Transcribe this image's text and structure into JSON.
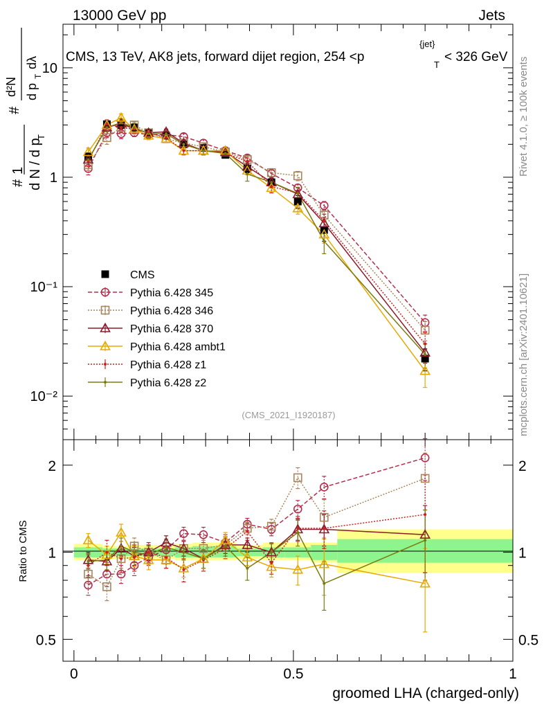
{
  "header": {
    "left_label": "13000 GeV pp",
    "right_label": "Jets",
    "plot_title_main": "CMS, 13 TeV, AK8 jets, forward dijet region, 254 <p",
    "plot_title_sub": "T",
    "plot_title_sup": "{jet}",
    "plot_title_tail": "< 326 GeV"
  },
  "side_labels": {
    "rivet": "Rivet 4.1.0, ≥ 100k events",
    "mcplots": "mcplots.cern.ch [arXiv:2401.10621]"
  },
  "watermark": "(CMS_2021_I1920187)",
  "colors": {
    "p345": "#b22d4b",
    "p346": "#a8855c",
    "p370": "#8b1a2a",
    "ambt1": "#e8a800",
    "z1": "#cc1f1f",
    "z2": "#7a7a10",
    "band_inner": "#8ef58e",
    "band_outer": "#ffff8c"
  },
  "chart_data": [
    {
      "type": "line",
      "panel": "main",
      "yscale": "log",
      "ylim": [
        0.004,
        25
      ],
      "xlim": [
        -0.025,
        1.0
      ],
      "ylabel": "# 1/(dN/dp_T) # d²N/(dp_T dλ)",
      "ytick_labels": [
        "10⁻²",
        "10⁻¹",
        "1",
        "10"
      ],
      "legend_position": "middle-left",
      "x": [
        0.0325,
        0.075,
        0.1075,
        0.1375,
        0.17,
        0.21,
        0.25,
        0.295,
        0.345,
        0.395,
        0.45,
        0.51,
        0.57,
        0.8
      ],
      "series": [
        {
          "name": "CMS",
          "values": [
            1.55,
            3.05,
            3.0,
            2.85,
            2.55,
            2.4,
            2.0,
            1.85,
            1.6,
            1.2,
            0.9,
            0.6,
            0.33,
            0.022
          ],
          "errors": [
            0.1,
            0.15,
            0.15,
            0.15,
            0.12,
            0.12,
            0.1,
            0.1,
            0.08,
            0.1,
            0.08,
            0.08,
            0.07,
            0.005
          ]
        },
        {
          "name": "Pythia 6.428 345",
          "values": [
            1.2,
            2.55,
            2.5,
            2.55,
            2.45,
            2.45,
            2.35,
            2.05,
            1.75,
            1.5,
            1.08,
            0.8,
            0.55,
            0.047
          ],
          "errors": [
            0.15,
            0.25,
            0.25,
            0.2,
            0.2,
            0.15,
            0.15,
            0.15,
            0.12,
            0.1,
            0.1,
            0.06,
            0.05,
            0.008
          ]
        },
        {
          "name": "Pythia 6.428 346",
          "values": [
            1.3,
            2.3,
            2.85,
            3.0,
            2.55,
            2.25,
            2.05,
            1.9,
            1.7,
            1.45,
            1.1,
            1.03,
            0.45,
            0.04
          ],
          "errors": [
            0.15,
            0.3,
            0.25,
            0.2,
            0.2,
            0.15,
            0.15,
            0.15,
            0.12,
            0.1,
            0.1,
            0.1,
            0.06,
            0.008
          ]
        },
        {
          "name": "Pythia 6.428 370",
          "values": [
            1.45,
            2.85,
            3.1,
            2.75,
            2.55,
            2.6,
            2.05,
            1.75,
            1.7,
            1.25,
            0.9,
            0.7,
            0.38,
            0.025
          ],
          "errors": [
            0.15,
            0.2,
            0.2,
            0.2,
            0.2,
            0.15,
            0.15,
            0.15,
            0.12,
            0.1,
            0.08,
            0.06,
            0.05,
            0.005
          ]
        },
        {
          "name": "Pythia 6.428 ambt1",
          "values": [
            1.7,
            3.0,
            3.5,
            2.75,
            2.4,
            2.25,
            1.75,
            1.75,
            1.75,
            1.15,
            0.8,
            0.52,
            0.3,
            0.017
          ],
          "errors": [
            0.15,
            0.2,
            0.3,
            0.25,
            0.2,
            0.15,
            0.15,
            0.15,
            0.12,
            0.1,
            0.08,
            0.06,
            0.05,
            0.005
          ]
        },
        {
          "name": "Pythia 6.428 z1",
          "values": [
            1.4,
            3.05,
            2.85,
            2.75,
            2.55,
            2.3,
            1.75,
            1.75,
            1.65,
            1.4,
            0.82,
            0.72,
            0.4,
            0.03
          ],
          "errors": [
            0.15,
            0.3,
            0.3,
            0.25,
            0.2,
            0.2,
            0.15,
            0.15,
            0.12,
            0.1,
            0.1,
            0.08,
            0.06,
            0.008
          ]
        },
        {
          "name": "Pythia 6.428 z2",
          "values": [
            1.45,
            2.85,
            3.15,
            2.85,
            2.5,
            2.5,
            2.0,
            1.75,
            1.65,
            1.07,
            0.9,
            0.71,
            0.26,
            0.024
          ],
          "errors": [
            0.15,
            0.2,
            0.25,
            0.25,
            0.2,
            0.2,
            0.15,
            0.15,
            0.15,
            0.15,
            0.1,
            0.1,
            0.06,
            0.006
          ]
        }
      ]
    },
    {
      "type": "line",
      "panel": "ratio",
      "yscale": "log",
      "ylim": [
        0.42,
        2.45
      ],
      "xlim": [
        -0.025,
        1.0
      ],
      "ylabel": "Ratio to CMS",
      "xlabel": "groomed LHA (charged-only)",
      "xtick_labels": [
        "0",
        "0.5",
        "1"
      ],
      "ytick_labels": [
        "0.5",
        "1",
        "2"
      ],
      "uncertainty_bins": [
        {
          "x0": 0.0,
          "x1": 0.065,
          "inner": [
            0.96,
            1.04
          ],
          "outer": [
            0.94,
            1.07
          ]
        },
        {
          "x0": 0.065,
          "x1": 0.125,
          "inner": [
            0.97,
            1.03
          ],
          "outer": [
            0.95,
            1.05
          ]
        },
        {
          "x0": 0.125,
          "x1": 0.15,
          "inner": [
            0.97,
            1.03
          ],
          "outer": [
            0.95,
            1.06
          ]
        },
        {
          "x0": 0.15,
          "x1": 0.19,
          "inner": [
            0.97,
            1.03
          ],
          "outer": [
            0.95,
            1.06
          ]
        },
        {
          "x0": 0.19,
          "x1": 0.23,
          "inner": [
            0.97,
            1.03
          ],
          "outer": [
            0.95,
            1.06
          ]
        },
        {
          "x0": 0.23,
          "x1": 0.27,
          "inner": [
            0.96,
            1.04
          ],
          "outer": [
            0.94,
            1.07
          ]
        },
        {
          "x0": 0.27,
          "x1": 0.32,
          "inner": [
            0.96,
            1.05
          ],
          "outer": [
            0.94,
            1.08
          ]
        },
        {
          "x0": 0.32,
          "x1": 0.37,
          "inner": [
            0.96,
            1.05
          ],
          "outer": [
            0.94,
            1.08
          ]
        },
        {
          "x0": 0.37,
          "x1": 0.43,
          "inner": [
            0.97,
            1.03
          ],
          "outer": [
            0.95,
            1.06
          ]
        },
        {
          "x0": 0.43,
          "x1": 0.48,
          "inner": [
            0.96,
            1.04
          ],
          "outer": [
            0.94,
            1.08
          ]
        },
        {
          "x0": 0.48,
          "x1": 0.54,
          "inner": [
            0.96,
            1.04
          ],
          "outer": [
            0.94,
            1.08
          ]
        },
        {
          "x0": 0.54,
          "x1": 0.6,
          "inner": [
            0.94,
            1.06
          ],
          "outer": [
            0.92,
            1.08
          ]
        },
        {
          "x0": 0.6,
          "x1": 1.0,
          "inner": [
            0.92,
            1.11
          ],
          "outer": [
            0.85,
            1.2
          ]
        }
      ],
      "series": [
        {
          "name": "Pythia 6.428 345",
          "values": [
            0.77,
            0.84,
            0.84,
            0.9,
            0.96,
            1.02,
            1.16,
            1.15,
            1.08,
            1.25,
            1.2,
            1.41,
            1.68,
            2.12
          ],
          "errors": [
            0.06,
            0.08,
            0.06,
            0.07,
            0.06,
            0.06,
            0.06,
            0.07,
            0.07,
            0.06,
            0.06,
            0.1,
            0.15,
            0.35
          ]
        },
        {
          "name": "Pythia 6.428 346",
          "values": [
            0.84,
            0.76,
            0.95,
            1.05,
            1.0,
            0.94,
            1.03,
            1.03,
            1.06,
            1.21,
            1.23,
            1.81,
            1.32,
            1.8
          ],
          "errors": [
            0.06,
            0.08,
            0.07,
            0.07,
            0.06,
            0.06,
            0.06,
            0.07,
            0.07,
            0.06,
            0.07,
            0.15,
            0.2,
            0.4
          ]
        },
        {
          "name": "Pythia 6.428 370",
          "values": [
            0.94,
            0.93,
            1.03,
            0.97,
            1.0,
            1.08,
            1.03,
            0.95,
            1.06,
            1.06,
            1.0,
            1.2,
            1.2,
            1.15
          ],
          "errors": [
            0.06,
            0.07,
            0.06,
            0.07,
            0.06,
            0.06,
            0.06,
            0.07,
            0.07,
            0.06,
            0.07,
            0.1,
            0.15,
            0.3
          ]
        },
        {
          "name": "Pythia 6.428 ambt1",
          "values": [
            1.1,
            0.98,
            1.17,
            0.97,
            0.94,
            0.94,
            0.88,
            0.95,
            1.1,
            0.96,
            0.89,
            0.87,
            0.91,
            0.78
          ],
          "errors": [
            0.06,
            0.07,
            0.08,
            0.08,
            0.07,
            0.06,
            0.06,
            0.07,
            0.07,
            0.06,
            0.07,
            0.1,
            0.2,
            0.25
          ]
        },
        {
          "name": "Pythia 6.428 z1",
          "values": [
            0.9,
            1.0,
            0.95,
            0.96,
            1.0,
            0.96,
            0.87,
            0.94,
            1.03,
            1.18,
            0.92,
            1.21,
            1.21,
            1.35
          ],
          "errors": [
            0.08,
            0.1,
            0.1,
            0.1,
            0.08,
            0.08,
            0.08,
            0.08,
            0.08,
            0.08,
            0.08,
            0.12,
            0.18,
            0.5
          ]
        },
        {
          "name": "Pythia 6.428 z2",
          "values": [
            0.93,
            0.94,
            1.05,
            1.0,
            0.98,
            1.04,
            1.0,
            0.95,
            1.05,
            0.88,
            1.0,
            1.17,
            0.78,
            1.1
          ],
          "errors": [
            0.06,
            0.07,
            0.07,
            0.08,
            0.07,
            0.07,
            0.06,
            0.07,
            0.08,
            0.08,
            0.08,
            0.12,
            0.15,
            0.3
          ]
        }
      ]
    }
  ]
}
